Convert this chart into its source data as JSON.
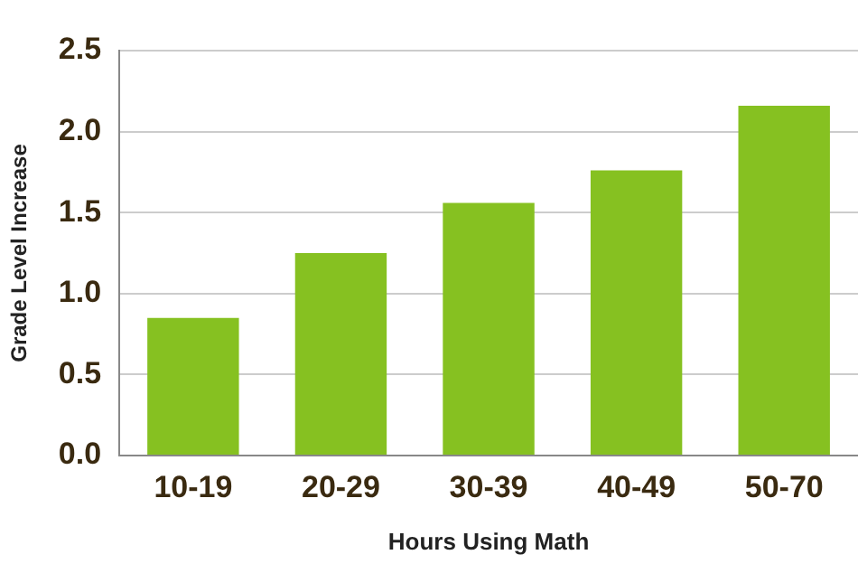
{
  "chart_data": {
    "type": "bar",
    "xlabel": "Hours Using Math",
    "ylabel": "Grade Level Increase",
    "categories": [
      "10-19",
      "20-29",
      "30-39",
      "40-49",
      "50-70"
    ],
    "values": [
      0.85,
      1.25,
      1.56,
      1.76,
      2.16
    ],
    "color": "#86c121",
    "ylim": [
      0,
      2.5
    ],
    "yticks": [
      {
        "value": 0,
        "label": "0.0"
      },
      {
        "value": 0.5,
        "label": "0.5"
      },
      {
        "value": 1,
        "label": "1.0"
      },
      {
        "value": 1.5,
        "label": "1.5"
      },
      {
        "value": 2,
        "label": "2.0"
      },
      {
        "value": 2.5,
        "label": "2.5"
      }
    ],
    "grid": "y",
    "legend": false
  }
}
